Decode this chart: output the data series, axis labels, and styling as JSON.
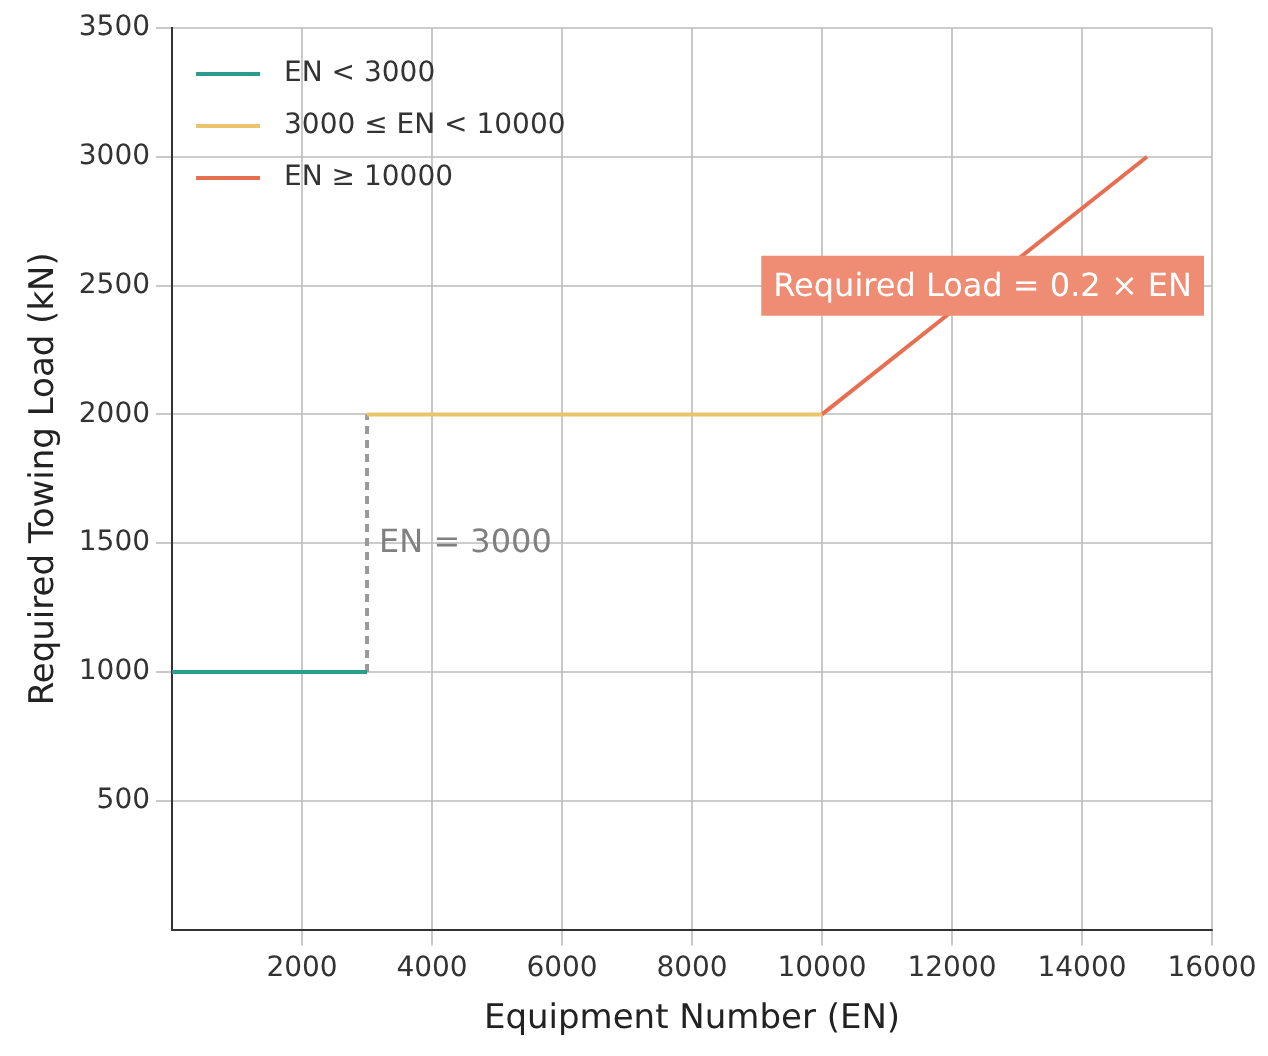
{
  "chart_data": {
    "type": "line",
    "xlabel": "Equipment Number (EN)",
    "ylabel": "Required Towing Load (kN)",
    "series": [
      {
        "name": "EN < 3000",
        "color": "#2a9d8f",
        "x": [
          0,
          3000
        ],
        "values": [
          1000,
          1000
        ]
      },
      {
        "name": "3000 ≤ EN < 10000",
        "color": "#e9c46a",
        "x": [
          3000,
          10000
        ],
        "values": [
          2000,
          2000
        ]
      },
      {
        "name": "EN ≥ 10000",
        "color": "#e76f51",
        "x": [
          10000,
          15000
        ],
        "values": [
          2000,
          3000
        ]
      },
      {
        "color": "#999999",
        "line_style": "dashed",
        "x": [
          3000,
          3000
        ],
        "values": [
          1000,
          2000
        ]
      }
    ],
    "xlim": [
      0,
      16000
    ],
    "xticks": [
      2000,
      4000,
      6000,
      8000,
      10000,
      12000,
      14000,
      16000
    ],
    "ylim": [
      0,
      3500
    ],
    "yticks": [
      500,
      1000,
      1500,
      2000,
      2500,
      3000,
      3500
    ],
    "annotations": [
      {
        "text": "EN = 3000",
        "x": 3000,
        "y": 1500
      },
      "Required Load = 0.2 × EN"
    ],
    "grid": true,
    "legend": "top left",
    "marker": "none"
  }
}
